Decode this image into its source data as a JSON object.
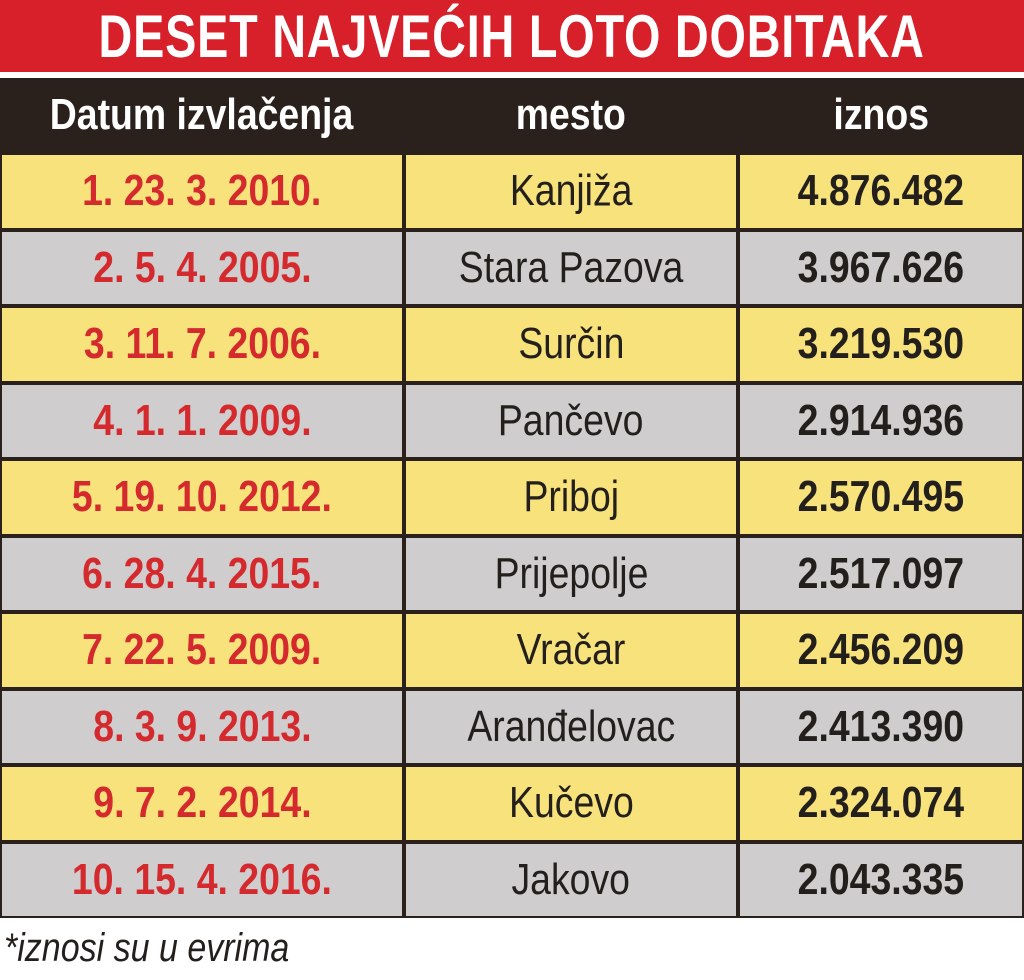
{
  "title": "DESET NAJVEĆIH LOTO DOBITAKA",
  "table": {
    "headers": [
      "Datum izvlačenja",
      "mesto",
      "iznos"
    ],
    "rows": [
      [
        "1. 23. 3. 2010.",
        "Kanjiža",
        "4.876.482"
      ],
      [
        "2. 5. 4. 2005.",
        "Stara Pazova",
        "3.967.626"
      ],
      [
        "3. 11. 7. 2006.",
        "Surčin",
        "3.219.530"
      ],
      [
        "4. 1. 1. 2009.",
        "Pančevo",
        "2.914.936"
      ],
      [
        "5. 19. 10. 2012.",
        "Priboj",
        "2.570.495"
      ],
      [
        "6. 28. 4. 2015.",
        "Prijepolje",
        "2.517.097"
      ],
      [
        "7. 22. 5. 2009.",
        "Vračar",
        "2.456.209"
      ],
      [
        "8. 3. 9. 2013.",
        "Aranđelovac",
        "2.413.390"
      ],
      [
        "9. 7. 2. 2014.",
        "Kučevo",
        "2.324.074"
      ],
      [
        "10. 15. 4. 2016.",
        "Jakovo",
        "2.043.335"
      ]
    ]
  },
  "footnote": "*iznosi su u evrima"
}
